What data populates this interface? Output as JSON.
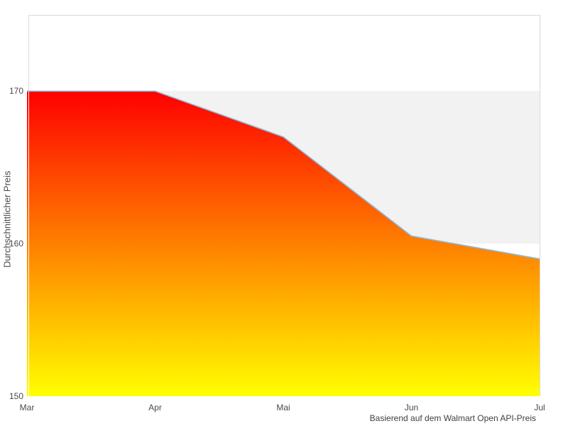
{
  "chart_data": {
    "type": "area",
    "title": "",
    "xlabel": "",
    "ylabel": "Durchschnittlicher Preis",
    "caption": "Basierend auf dem Walmart Open API-Preis",
    "categories": [
      "Mar",
      "Apr",
      "Mai",
      "Jun",
      "Jul"
    ],
    "values": [
      170,
      170,
      167,
      160.5,
      159
    ],
    "series": [
      {
        "name": "Durchschnittlicher Preis",
        "values": [
          170,
          170,
          167,
          160.5,
          159
        ]
      }
    ],
    "ylim": [
      150,
      175
    ],
    "y_ticks": [
      150,
      160,
      170
    ],
    "grid": "interlaced horizontal bands",
    "legend": "none",
    "plot_bands": [
      {
        "from": 160,
        "to": 170,
        "color": "#f2f2f2"
      }
    ],
    "colors": {
      "line": "#8fb6d8",
      "area_gradient_top": "#ff0000",
      "area_gradient_bottom": "#ffff00",
      "band_fill": "#f2f2f2",
      "plot_border": "#d9d9d9",
      "text": "#4a4a4a",
      "background": "#ffffff"
    }
  }
}
